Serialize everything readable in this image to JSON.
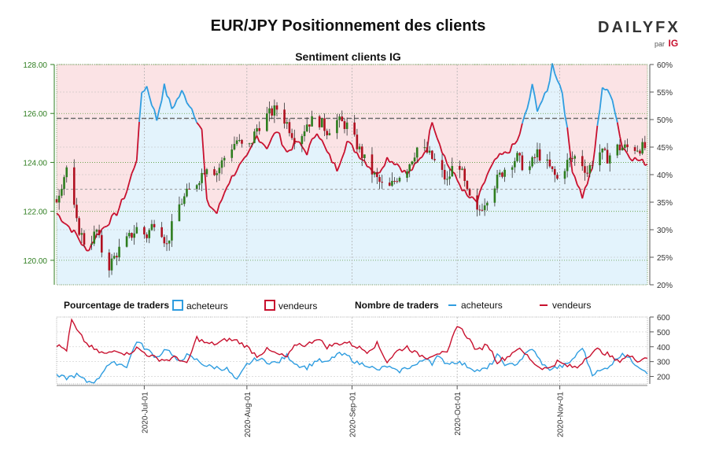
{
  "header": {
    "title": "EUR/JPY Positionnement des clients",
    "subtitle": "Sentiment clients IG",
    "logo": "DAILYFX",
    "logo_sub": "par",
    "logo_brand": "IG"
  },
  "legend": {
    "pct_label": "Pourcentage de traders",
    "count_label": "Nombre de traders",
    "buyers": "acheteurs",
    "sellers": "vendeurs"
  },
  "colors": {
    "buyers": "#2f9de0",
    "sellers": "#c8102e",
    "buyers_fill": "#e3f3fc",
    "sellers_fill": "#fbe3e5",
    "candle_up": "#2e7d1f",
    "candle_down": "#b01020"
  },
  "chart_data": [
    {
      "type": "candlestick",
      "title": "Sentiment clients IG",
      "y_left_ticks": [
        "120.00",
        "122.00",
        "124.00",
        "126.00",
        "128.00"
      ],
      "ylim_left": [
        119.0,
        128.0
      ],
      "y_right_ticks": [
        "20%",
        "25%",
        "30%",
        "35%",
        "40%",
        "45%",
        "50%",
        "55%",
        "60%"
      ],
      "ylim_right": [
        20,
        60
      ],
      "reference_lines": [
        125.8,
        122.9
      ],
      "x_ticks": [
        "2020-Jul-01",
        "2020-Aug-01",
        "2020-Sep-01",
        "2020-Oct-01",
        "2020-Nov-01"
      ],
      "price_close_keyframes": [
        [
          0,
          122.5
        ],
        [
          4,
          123.8
        ],
        [
          8,
          121.5
        ],
        [
          12,
          120.5
        ],
        [
          16,
          121.2
        ],
        [
          20,
          119.6
        ],
        [
          24,
          120.3
        ],
        [
          28,
          120.8
        ],
        [
          32,
          121.3
        ],
        [
          36,
          121.0
        ],
        [
          40,
          121.8
        ],
        [
          44,
          120.6
        ],
        [
          48,
          122.1
        ],
        [
          52,
          122.7
        ],
        [
          56,
          123.2
        ],
        [
          60,
          123.9
        ],
        [
          64,
          123.6
        ],
        [
          68,
          124.4
        ],
        [
          72,
          124.9
        ],
        [
          76,
          124.4
        ],
        [
          80,
          125.4
        ],
        [
          84,
          125.9
        ],
        [
          88,
          126.2
        ],
        [
          92,
          125.6
        ],
        [
          96,
          124.8
        ],
        [
          100,
          125.6
        ],
        [
          104,
          125.8
        ],
        [
          108,
          125.3
        ],
        [
          112,
          125.7
        ],
        [
          116,
          125.5
        ],
        [
          120,
          124.7
        ],
        [
          124,
          123.9
        ],
        [
          128,
          123.3
        ],
        [
          132,
          122.8
        ],
        [
          136,
          123.4
        ],
        [
          140,
          123.8
        ],
        [
          144,
          124.6
        ],
        [
          148,
          124.4
        ],
        [
          152,
          123.9
        ],
        [
          156,
          123.2
        ],
        [
          160,
          124.3
        ],
        [
          164,
          122.7
        ],
        [
          168,
          121.9
        ],
        [
          172,
          122.6
        ],
        [
          176,
          123.3
        ],
        [
          180,
          123.9
        ],
        [
          184,
          124.2
        ],
        [
          188,
          123.6
        ],
        [
          192,
          124.4
        ],
        [
          196,
          123.9
        ],
        [
          200,
          123.3
        ],
        [
          204,
          124.0
        ],
        [
          208,
          124.3
        ],
        [
          212,
          123.6
        ],
        [
          216,
          124.5
        ],
        [
          220,
          124.2
        ],
        [
          224,
          124.6
        ]
      ],
      "buyers_pct_keyframes": [
        [
          0,
          33
        ],
        [
          8,
          29
        ],
        [
          12,
          26
        ],
        [
          16,
          29
        ],
        [
          20,
          31
        ],
        [
          24,
          33
        ],
        [
          28,
          37
        ],
        [
          32,
          43
        ],
        [
          34,
          55
        ],
        [
          36,
          56
        ],
        [
          40,
          50
        ],
        [
          43,
          56
        ],
        [
          46,
          52
        ],
        [
          50,
          55
        ],
        [
          54,
          52
        ],
        [
          58,
          48
        ],
        [
          60,
          35
        ],
        [
          64,
          33
        ],
        [
          68,
          38
        ],
        [
          72,
          41
        ],
        [
          76,
          43
        ],
        [
          80,
          47
        ],
        [
          84,
          45
        ],
        [
          88,
          48
        ],
        [
          92,
          44
        ],
        [
          96,
          46
        ],
        [
          100,
          44
        ],
        [
          104,
          48
        ],
        [
          108,
          44
        ],
        [
          112,
          41
        ],
        [
          116,
          46
        ],
        [
          120,
          44
        ],
        [
          124,
          42
        ],
        [
          128,
          40
        ],
        [
          132,
          43
        ],
        [
          136,
          42
        ],
        [
          140,
          40
        ],
        [
          144,
          42
        ],
        [
          148,
          45
        ],
        [
          150,
          50
        ],
        [
          152,
          47
        ],
        [
          156,
          42
        ],
        [
          160,
          39
        ],
        [
          164,
          36
        ],
        [
          168,
          35
        ],
        [
          172,
          40
        ],
        [
          176,
          43
        ],
        [
          180,
          44
        ],
        [
          184,
          46
        ],
        [
          188,
          52
        ],
        [
          190,
          56
        ],
        [
          192,
          52
        ],
        [
          196,
          55
        ],
        [
          198,
          60
        ],
        [
          202,
          55
        ],
        [
          206,
          41
        ],
        [
          210,
          36
        ],
        [
          214,
          41
        ],
        [
          218,
          56
        ],
        [
          222,
          54
        ],
        [
          226,
          45
        ],
        [
          230,
          43
        ],
        [
          236,
          42
        ]
      ],
      "note": "filled area bounded by the sentiment line: buyers below, sellers above"
    },
    {
      "type": "line",
      "title": "Nombre de traders",
      "y_ticks": [
        "200",
        "300",
        "400",
        "500",
        "600"
      ],
      "ylim": [
        150,
        600
      ],
      "series": [
        {
          "name": "acheteurs",
          "keyframes": [
            [
              0,
              200
            ],
            [
              4,
              190
            ],
            [
              8,
              210
            ],
            [
              12,
              165
            ],
            [
              16,
              170
            ],
            [
              20,
              275
            ],
            [
              24,
              290
            ],
            [
              28,
              270
            ],
            [
              32,
              440
            ],
            [
              36,
              380
            ],
            [
              40,
              330
            ],
            [
              44,
              390
            ],
            [
              48,
              300
            ],
            [
              52,
              340
            ],
            [
              56,
              310
            ],
            [
              60,
              270
            ],
            [
              64,
              260
            ],
            [
              68,
              250
            ],
            [
              72,
              170
            ],
            [
              76,
              280
            ],
            [
              80,
              320
            ],
            [
              84,
              300
            ],
            [
              88,
              290
            ],
            [
              92,
              340
            ],
            [
              96,
              280
            ],
            [
              100,
              260
            ],
            [
              104,
              310
            ],
            [
              108,
              290
            ],
            [
              112,
              350
            ],
            [
              116,
              340
            ],
            [
              120,
              290
            ],
            [
              124,
              280
            ],
            [
              128,
              240
            ],
            [
              132,
              270
            ],
            [
              136,
              230
            ],
            [
              140,
              260
            ],
            [
              144,
              280
            ],
            [
              148,
              330
            ],
            [
              150,
              290
            ],
            [
              152,
              330
            ],
            [
              156,
              290
            ],
            [
              160,
              300
            ],
            [
              164,
              270
            ],
            [
              168,
              240
            ],
            [
              172,
              250
            ],
            [
              176,
              340
            ],
            [
              180,
              270
            ],
            [
              184,
              290
            ],
            [
              188,
              360
            ],
            [
              190,
              390
            ],
            [
              192,
              330
            ],
            [
              196,
              250
            ],
            [
              200,
              260
            ],
            [
              204,
              280
            ],
            [
              208,
              350
            ],
            [
              210,
              400
            ],
            [
              212,
              300
            ],
            [
              214,
              220
            ],
            [
              218,
              240
            ],
            [
              222,
              290
            ],
            [
              226,
              360
            ],
            [
              230,
              300
            ],
            [
              236,
              230
            ]
          ]
        },
        {
          "name": "vendeurs",
          "keyframes": [
            [
              0,
              410
            ],
            [
              4,
              380
            ],
            [
              6,
              580
            ],
            [
              8,
              510
            ],
            [
              12,
              420
            ],
            [
              16,
              370
            ],
            [
              20,
              350
            ],
            [
              24,
              380
            ],
            [
              28,
              350
            ],
            [
              32,
              390
            ],
            [
              36,
              350
            ],
            [
              40,
              320
            ],
            [
              44,
              310
            ],
            [
              48,
              330
            ],
            [
              52,
              280
            ],
            [
              56,
              460
            ],
            [
              60,
              420
            ],
            [
              64,
              420
            ],
            [
              68,
              450
            ],
            [
              72,
              440
            ],
            [
              76,
              400
            ],
            [
              80,
              340
            ],
            [
              84,
              380
            ],
            [
              88,
              350
            ],
            [
              92,
              330
            ],
            [
              96,
              420
            ],
            [
              100,
              410
            ],
            [
              104,
              460
            ],
            [
              108,
              400
            ],
            [
              112,
              420
            ],
            [
              116,
              430
            ],
            [
              120,
              400
            ],
            [
              124,
              370
            ],
            [
              128,
              420
            ],
            [
              132,
              300
            ],
            [
              136,
              370
            ],
            [
              140,
              400
            ],
            [
              144,
              350
            ],
            [
              148,
              330
            ],
            [
              152,
              360
            ],
            [
              156,
              350
            ],
            [
              160,
              550
            ],
            [
              164,
              470
            ],
            [
              168,
              370
            ],
            [
              172,
              420
            ],
            [
              176,
              300
            ],
            [
              180,
              330
            ],
            [
              184,
              390
            ],
            [
              188,
              340
            ],
            [
              192,
              270
            ],
            [
              196,
              250
            ],
            [
              200,
              300
            ],
            [
              204,
              270
            ],
            [
              208,
              260
            ],
            [
              212,
              340
            ],
            [
              216,
              380
            ],
            [
              220,
              350
            ],
            [
              224,
              300
            ],
            [
              228,
              340
            ],
            [
              232,
              310
            ],
            [
              236,
              330
            ]
          ]
        }
      ]
    }
  ]
}
